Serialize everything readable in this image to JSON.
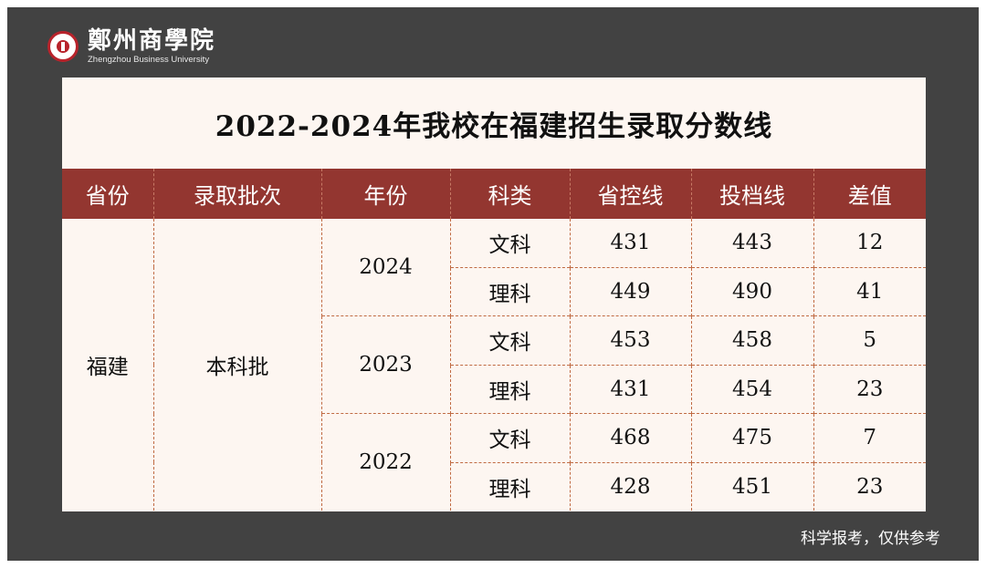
{
  "header": {
    "logo_icon": "university-seal-icon",
    "name_cn": "鄭州商學院",
    "name_en": "Zhengzhou Business University"
  },
  "title": "2022-2024年我校在福建招生录取分数线",
  "table": {
    "columns": [
      "省份",
      "录取批次",
      "年份",
      "科类",
      "省控线",
      "投档线",
      "差值"
    ],
    "province": "福建",
    "batch": "本科批",
    "years": [
      {
        "year": "2024",
        "rows": [
          {
            "subject": "文科",
            "control_line": "431",
            "admission_line": "443",
            "diff": "12"
          },
          {
            "subject": "理科",
            "control_line": "449",
            "admission_line": "490",
            "diff": "41"
          }
        ]
      },
      {
        "year": "2023",
        "rows": [
          {
            "subject": "文科",
            "control_line": "453",
            "admission_line": "458",
            "diff": "5"
          },
          {
            "subject": "理科",
            "control_line": "431",
            "admission_line": "454",
            "diff": "23"
          }
        ]
      },
      {
        "year": "2022",
        "rows": [
          {
            "subject": "文科",
            "control_line": "468",
            "admission_line": "475",
            "diff": "7"
          },
          {
            "subject": "理科",
            "control_line": "428",
            "admission_line": "451",
            "diff": "23"
          }
        ]
      }
    ]
  },
  "footer": {
    "note": "科学报考，仅供参考"
  },
  "colors": {
    "frame": "#424242",
    "header_row": "#933630",
    "card": "#fdf6f1",
    "dashed_border": "#c06a42"
  }
}
